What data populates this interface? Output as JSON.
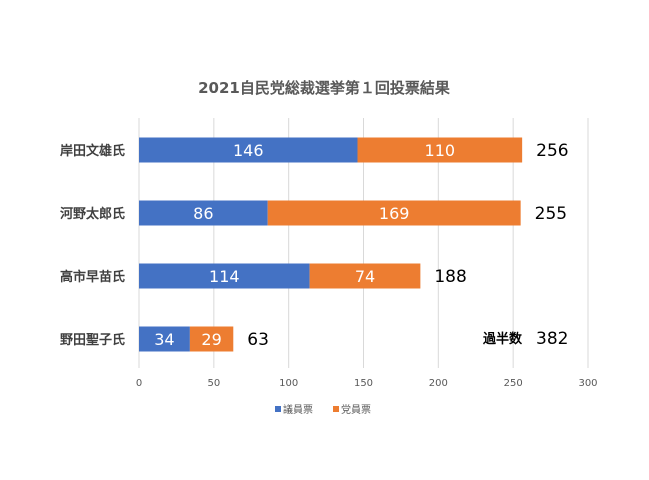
{
  "chart_data": {
    "type": "bar",
    "orientation": "horizontal",
    "stacked": true,
    "title": "2021自民党総裁選挙第１回投票結果",
    "categories": [
      "岸田文雄氏",
      "河野太郎氏",
      "高市早苗氏",
      "野田聖子氏"
    ],
    "series": [
      {
        "name": "議員票",
        "color": "#4472c4",
        "values": [
          146,
          86,
          114,
          34
        ]
      },
      {
        "name": "党員票",
        "color": "#ed7d31",
        "values": [
          110,
          169,
          74,
          29
        ]
      }
    ],
    "totals": [
      256,
      255,
      188,
      63
    ],
    "xlim": [
      0,
      300
    ],
    "xticks": [
      0,
      50,
      100,
      150,
      200,
      250,
      300
    ],
    "grid": true,
    "legend_position": "bottom",
    "annotation": {
      "label": "過半数",
      "value": "382"
    }
  }
}
